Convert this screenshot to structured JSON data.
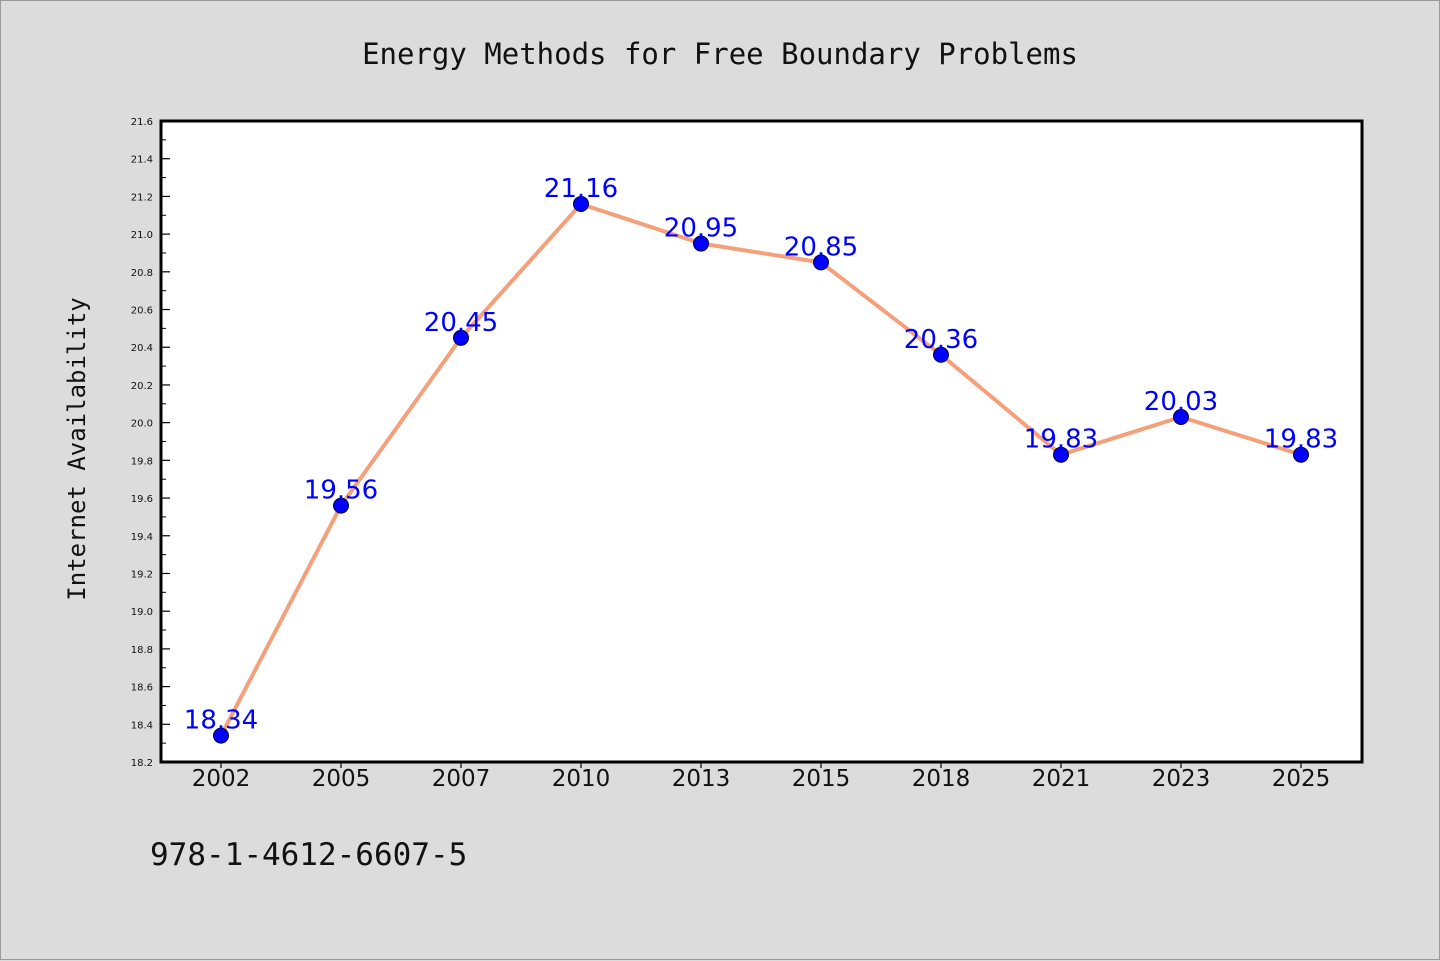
{
  "chart_data": {
    "type": "line",
    "title": "Energy Methods for Free Boundary Problems",
    "xlabel": "",
    "ylabel": "Internet Availability",
    "categories": [
      "2002",
      "2005",
      "2007",
      "2010",
      "2013",
      "2015",
      "2018",
      "2021",
      "2023",
      "2025"
    ],
    "series": [
      {
        "values": [
          18.34,
          19.56,
          20.45,
          21.16,
          20.95,
          20.85,
          20.36,
          19.83,
          20.03,
          19.83
        ]
      }
    ],
    "data_labels": [
      "18.34",
      "19.56",
      "20.45",
      "21.16",
      "20.95",
      "20.85",
      "20.36",
      "19.83",
      "20.03",
      "19.83"
    ],
    "y_ticks": [
      "18.2",
      "18.4",
      "18.6",
      "18.8",
      "19.0",
      "19.2",
      "19.4",
      "19.6",
      "19.8",
      "20.0",
      "20.2",
      "20.4",
      "20.6",
      "20.8",
      "21.0",
      "21.2",
      "21.4",
      "21.6"
    ],
    "ylim": [
      18.2,
      21.6
    ],
    "grid": false,
    "legend": "none",
    "colors": {
      "line": "#f4a07a",
      "marker": "#0000ff",
      "data_label": "#0000ff",
      "plot_background": "#ffffff",
      "figure_background": "#dcdcdc"
    }
  },
  "footer": {
    "isbn": "978-1-4612-6607-5"
  }
}
